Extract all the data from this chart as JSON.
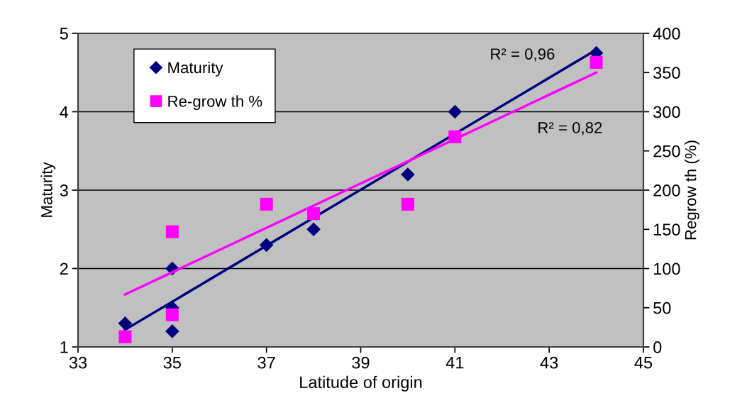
{
  "chart_data": {
    "type": "scatter",
    "xlabel": "Latitude of origin",
    "ylabel": "Maturity",
    "y2label": "Regrow th (%)",
    "xlim": [
      33,
      45
    ],
    "xticks": [
      33,
      35,
      37,
      39,
      41,
      43,
      45
    ],
    "ylim": [
      1,
      5
    ],
    "yticks": [
      1,
      2,
      3,
      4,
      5
    ],
    "y2lim": [
      0,
      400
    ],
    "y2ticks": [
      0,
      50,
      100,
      150,
      200,
      250,
      300,
      350,
      400
    ],
    "grid": "y",
    "legend": "top left",
    "series": [
      {
        "name": "Maturity",
        "marker": "diamond",
        "color": "#000080",
        "x": [
          34,
          35,
          35,
          35,
          37,
          38,
          40,
          41,
          44
        ],
        "values": [
          1.3,
          2.0,
          1.5,
          1.2,
          2.3,
          2.5,
          3.2,
          4.0,
          4.75
        ]
      },
      {
        "name": "Re-grow th %",
        "marker": "square",
        "axis": "y2",
        "color": "#ff00ff",
        "x": [
          34,
          35,
          35,
          37,
          38,
          40,
          41,
          44
        ],
        "values": [
          13,
          147,
          41,
          182,
          170,
          182,
          268,
          363
        ]
      },
      {
        "type": "line",
        "marker": "none",
        "color": "#000080",
        "x": [
          34,
          44
        ],
        "values": [
          1.22,
          4.79
        ]
      },
      {
        "type": "line",
        "marker": "none",
        "axis": "y2",
        "color": "#ff00ff",
        "x": [
          34,
          44
        ],
        "values": [
          67,
          350
        ]
      }
    ],
    "annotations": [
      "R² = 0,96",
      "R² = 0,82"
    ]
  }
}
